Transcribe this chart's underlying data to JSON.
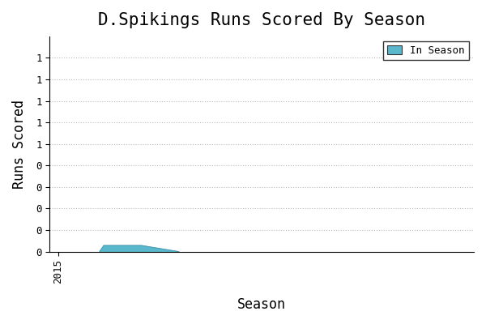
{
  "title": "D.Spikings Runs Scored By Season",
  "xlabel": "Season",
  "ylabel": "Runs Scored",
  "legend_label": "In Season",
  "fill_color": "#5ab8cc",
  "line_color": "#4a9db5",
  "background_color": "#ffffff",
  "seasons": [
    2016.0,
    2016.1,
    2017.0,
    2017.9
  ],
  "runs": [
    0.0,
    0.04,
    0.04,
    0.0
  ],
  "xlim": [
    2014.8,
    2025
  ],
  "ylim": [
    0,
    1.4
  ],
  "yticks": [
    0.0,
    0.14,
    0.28,
    0.42,
    0.56,
    0.7,
    0.84,
    0.98,
    1.12,
    1.26
  ],
  "ytick_labels": [
    "0",
    "0",
    "0",
    "0",
    "0",
    "1",
    "1",
    "1",
    "1",
    "1"
  ],
  "xticks": [
    2015
  ],
  "xtick_labels": [
    "2015"
  ],
  "title_fontsize": 15,
  "axis_label_fontsize": 12,
  "tick_fontsize": 9,
  "legend_fontsize": 9,
  "grid_linestyle": ":",
  "grid_color": "#bbbbbb",
  "grid_linewidth": 0.8
}
